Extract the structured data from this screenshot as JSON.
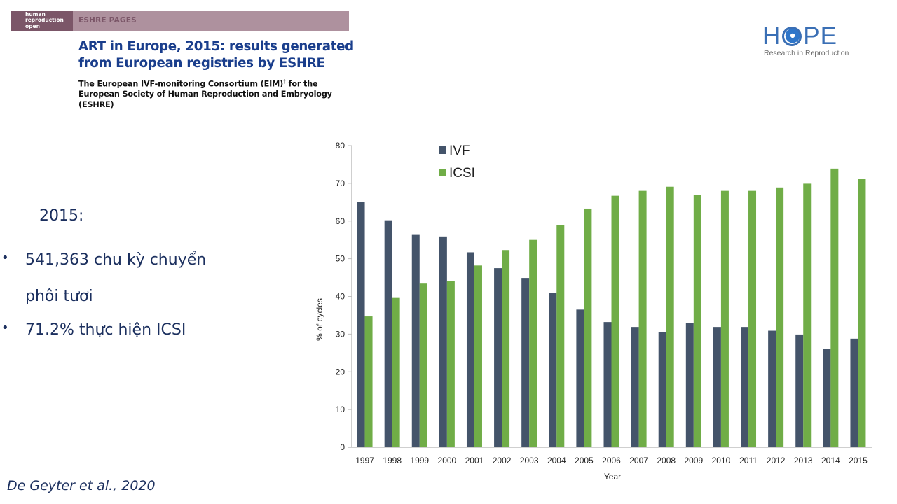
{
  "paper_header": {
    "journal_lines": [
      "human",
      "reproduction",
      "open"
    ],
    "section": "ESHRE PAGES",
    "title_lines": [
      "ART in Europe, 2015: results generated",
      "from European registries by ESHRE"
    ],
    "authors_line1": "The European IVF-monitoring Consortium (EIM)",
    "authors_dagger": "†",
    "authors_line1_end": " for the",
    "authors_line2": "European Society of Human Reproduction and Embryology",
    "authors_line3": "(ESHRE)"
  },
  "logo": {
    "word_left": "H",
    "word_right": "PE",
    "tagline": "Research in Reproduction",
    "color": "#3a6fb5"
  },
  "summary": {
    "year": "2015:",
    "bullets": [
      {
        "lines": [
          "541,363 chu kỳ  chuyển",
          "phôi tươi"
        ]
      },
      {
        "lines": [
          "71.2% thực hiện ICSI"
        ]
      }
    ]
  },
  "citation": "De Geyter et al., 2020",
  "chart_data": {
    "type": "bar",
    "title": "",
    "xlabel": "Year",
    "ylabel": "% of cycles",
    "ylim": [
      0,
      80
    ],
    "yticks": [
      0,
      10,
      20,
      30,
      40,
      50,
      60,
      70,
      80
    ],
    "grid": false,
    "legend_position": "top-left",
    "categories": [
      "1997",
      "1998",
      "1999",
      "2000",
      "2001",
      "2002",
      "2003",
      "2004",
      "2005",
      "2006",
      "2007",
      "2008",
      "2009",
      "2010",
      "2011",
      "2012",
      "2013",
      "2014",
      "2015"
    ],
    "series": [
      {
        "name": "IVF",
        "color": "#44546a",
        "values": [
          65.1,
          60.2,
          56.5,
          55.9,
          51.7,
          47.5,
          44.9,
          40.9,
          36.5,
          33.2,
          31.9,
          30.5,
          33.0,
          31.9,
          31.9,
          30.9,
          29.9,
          26.0,
          28.8
        ]
      },
      {
        "name": "ICSI",
        "color": "#70ad47",
        "values": [
          34.7,
          39.6,
          43.4,
          44.0,
          48.2,
          52.3,
          55.0,
          58.9,
          63.3,
          66.7,
          68.0,
          69.1,
          66.9,
          68.0,
          68.0,
          68.9,
          69.9,
          73.9,
          71.2
        ]
      }
    ]
  },
  "colors": {
    "header_band": "#ae919e",
    "journal_block": "#7b5668",
    "title_blue": "#1a3e8c",
    "body_text": "#1b2f5e"
  }
}
